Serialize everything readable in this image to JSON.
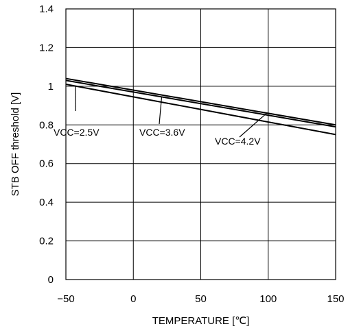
{
  "chart_data": {
    "type": "line",
    "xlabel": "TEMPERATURE [℃]",
    "ylabel": "STB OFF threshold [V]",
    "xlim": [
      -50,
      150
    ],
    "ylim": [
      0,
      1.4
    ],
    "xticks": [
      "-50",
      "0",
      "50",
      "100",
      "150"
    ],
    "yticks": [
      "0",
      "0.2",
      "0.4",
      "0.6",
      "0.8",
      "1",
      "1.2",
      "1.4"
    ],
    "grid": true,
    "series": [
      {
        "name": "VCC=2.5V",
        "x": [
          -50,
          150
        ],
        "y": [
          1.01,
          0.75
        ]
      },
      {
        "name": "VCC=3.6V",
        "x": [
          -50,
          150
        ],
        "y": [
          1.03,
          0.79
        ]
      },
      {
        "name": "VCC=4.2V",
        "x": [
          -50,
          150
        ],
        "y": [
          1.04,
          0.8
        ]
      }
    ],
    "annotations": [
      {
        "text": "VCC=2.5V",
        "series": 0,
        "point_x": -43
      },
      {
        "text": "VCC=3.6V",
        "series": 1,
        "point_x": 21
      },
      {
        "text": "VCC=4.2V",
        "series": 2,
        "point_x": 99
      }
    ]
  }
}
